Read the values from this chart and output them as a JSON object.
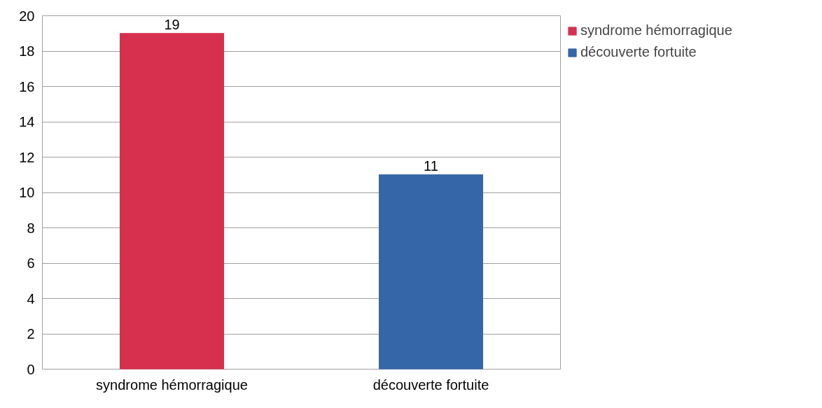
{
  "chart_data": {
    "type": "bar",
    "categories": [
      "syndrome hémorragique",
      "découverte fortuite"
    ],
    "series": [
      {
        "name": "syndrome hémorragique",
        "color": "#d6304e",
        "values": [
          19,
          null
        ]
      },
      {
        "name": "découverte fortuite",
        "color": "#3566a8",
        "values": [
          null,
          11
        ]
      }
    ],
    "ylim": [
      0,
      20
    ],
    "yticks": [
      0,
      2,
      4,
      6,
      8,
      10,
      12,
      14,
      16,
      18,
      20
    ],
    "grid": "y",
    "data_labels": true,
    "legend": "right"
  }
}
